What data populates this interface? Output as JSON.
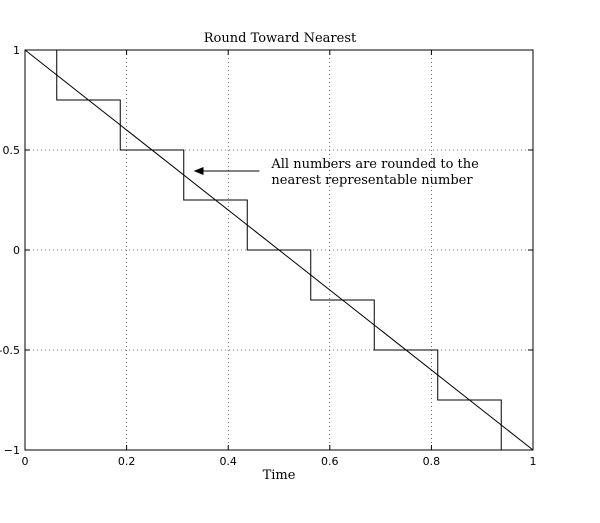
{
  "chart_data": {
    "type": "line",
    "title": "Round Toward Nearest",
    "xlabel": "Time",
    "ylabel": "",
    "xlim": [
      0,
      1
    ],
    "ylim": [
      -1,
      1
    ],
    "grid": true,
    "x_ticks": [
      0,
      0.2,
      0.4,
      0.6,
      0.8,
      1
    ],
    "x_tick_labels": [
      "0",
      "0.2",
      "0.4",
      "0.6",
      "0.8",
      "1"
    ],
    "y_ticks": [
      -1,
      -0.5,
      0,
      0.5,
      1
    ],
    "y_tick_labels": [
      "−1",
      "-0.5",
      "0",
      "0.5",
      "1"
    ],
    "series": [
      {
        "kind": "straight",
        "x": [
          0,
          1
        ],
        "y": [
          1,
          -1
        ]
      },
      {
        "kind": "staircase",
        "x": [
          0.0625,
          0.0625,
          0.1875,
          0.1875,
          0.3125,
          0.3125,
          0.4375,
          0.4375,
          0.5625,
          0.5625,
          0.6875,
          0.6875,
          0.8125,
          0.8125,
          0.9375,
          0.9375
        ],
        "y": [
          1,
          0.75,
          0.75,
          0.5,
          0.5,
          0.25,
          0.25,
          0,
          0,
          -0.25,
          -0.25,
          -0.5,
          -0.5,
          -0.75,
          -0.75,
          -1
        ]
      }
    ],
    "annotations": [
      {
        "lines": [
          "All numbers are rounded to the",
          "nearest representable number"
        ],
        "arrow_x": 0.33,
        "arrow_y": 0.425,
        "text_x": 0.485,
        "text_y": 0.425
      }
    ]
  }
}
